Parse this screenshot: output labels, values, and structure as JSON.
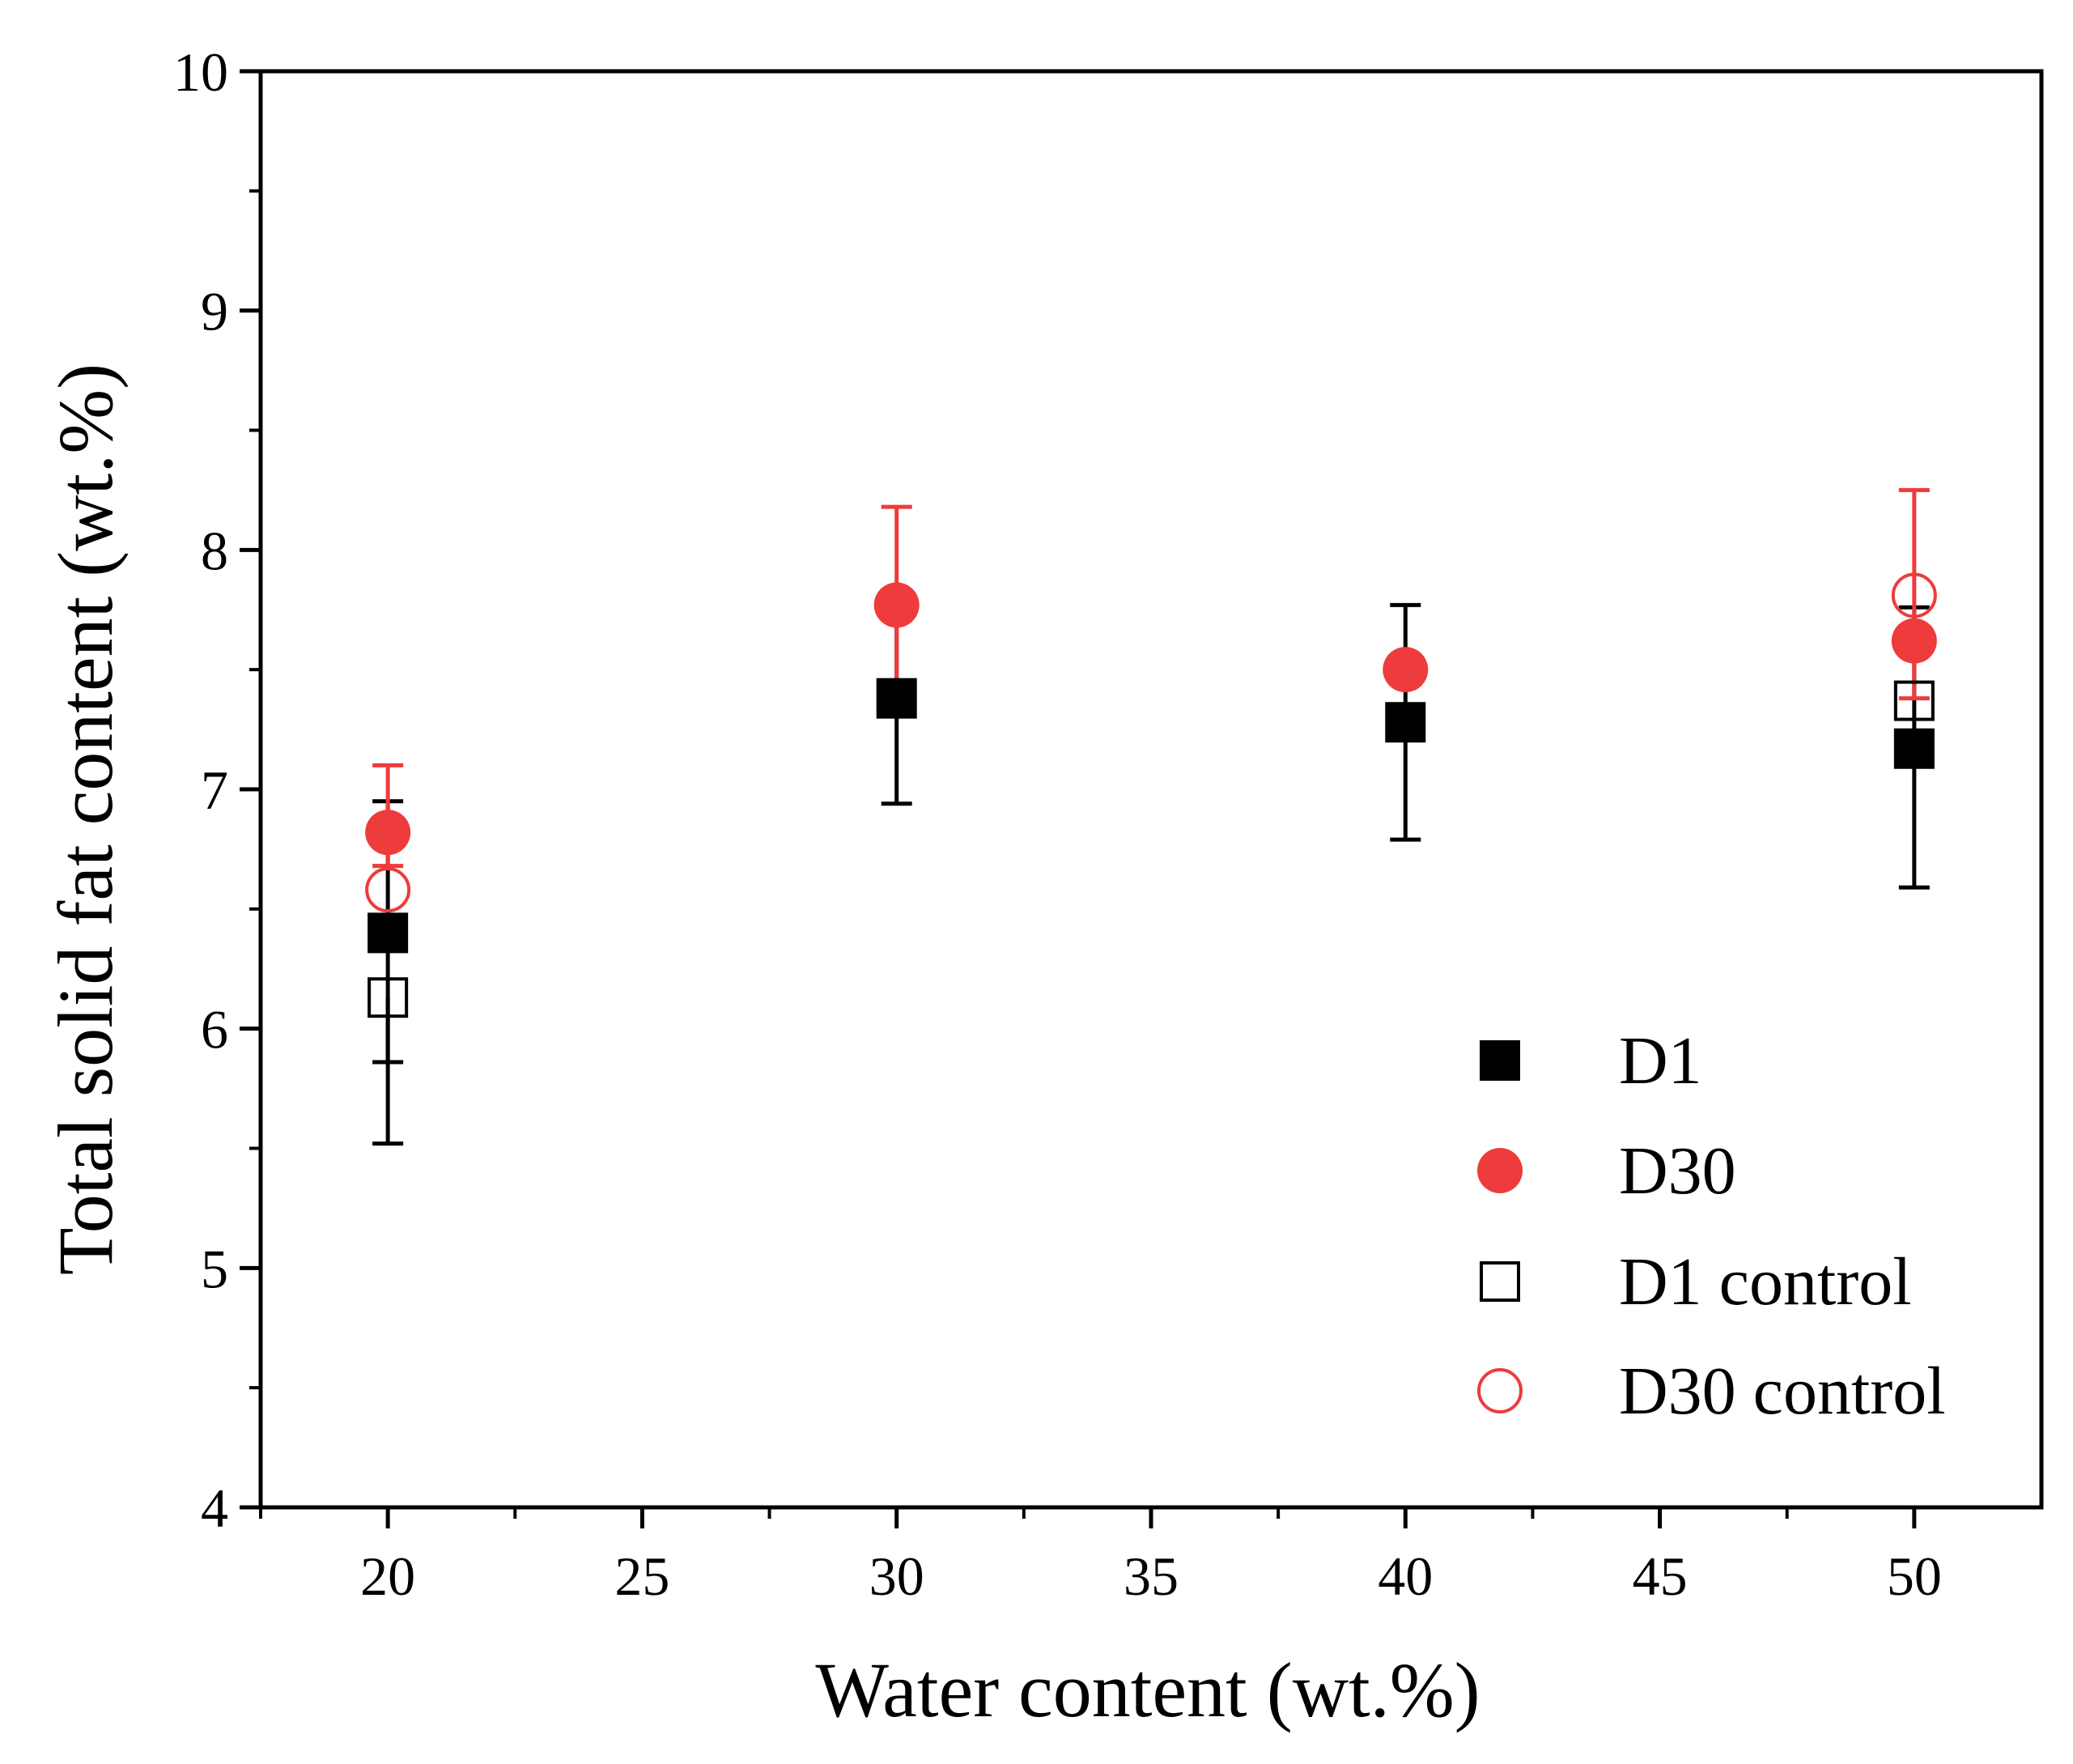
{
  "chart_data": {
    "type": "scatter",
    "title": "",
    "xlabel": "Water content (wt.%)",
    "ylabel": "Total solid fat content (wt.%)",
    "xlim": [
      17.5,
      52.5
    ],
    "ylim": [
      4,
      10
    ],
    "x_ticks": [
      "20",
      "25",
      "30",
      "35",
      "40",
      "45",
      "50"
    ],
    "y_ticks": [
      "4",
      "5",
      "6",
      "7",
      "8",
      "9",
      "10"
    ],
    "grid": false,
    "legend_position": "bottom-right",
    "series": [
      {
        "name": "D1",
        "marker": "filled-square",
        "color": "#000000",
        "points": [
          {
            "x": 20,
            "y": 6.4,
            "err_low": 0.88,
            "err_high": 0.55
          },
          {
            "x": 30,
            "y": 7.38,
            "err_low": 0.44,
            "err_high": 0.43
          },
          {
            "x": 40,
            "y": 7.28,
            "err_low": 0.49,
            "err_high": 0.49
          },
          {
            "x": 50,
            "y": 7.17,
            "err_low": 0.58,
            "err_high": 0.59
          }
        ]
      },
      {
        "name": "D30",
        "marker": "filled-circle",
        "color": "#ee3b3b",
        "points": [
          {
            "x": 20,
            "y": 6.82,
            "err_low": 0.14,
            "err_high": 0.28
          },
          {
            "x": 30,
            "y": 7.77,
            "err_low": 0.4,
            "err_high": 0.41
          },
          {
            "x": 40,
            "y": 7.5,
            "err_low": 0.01,
            "err_high": 0.01
          },
          {
            "x": 50,
            "y": 7.62,
            "err_low": 0.24,
            "err_high": 0.63
          }
        ]
      },
      {
        "name": "D1 control",
        "marker": "open-square",
        "color": "#000000",
        "points": [
          {
            "x": 20,
            "y": 6.13,
            "err_low": 0.27,
            "err_high": 0.0
          },
          {
            "x": 50,
            "y": 7.37,
            "err_low": 0.0,
            "err_high": 0.0
          }
        ]
      },
      {
        "name": "D30 control",
        "marker": "open-circle",
        "color": "#ee3b3b",
        "points": [
          {
            "x": 20,
            "y": 6.58,
            "err_low": 0.0,
            "err_high": 0.0
          },
          {
            "x": 50,
            "y": 7.81,
            "err_low": 0.0,
            "err_high": 0.0
          }
        ]
      }
    ]
  }
}
